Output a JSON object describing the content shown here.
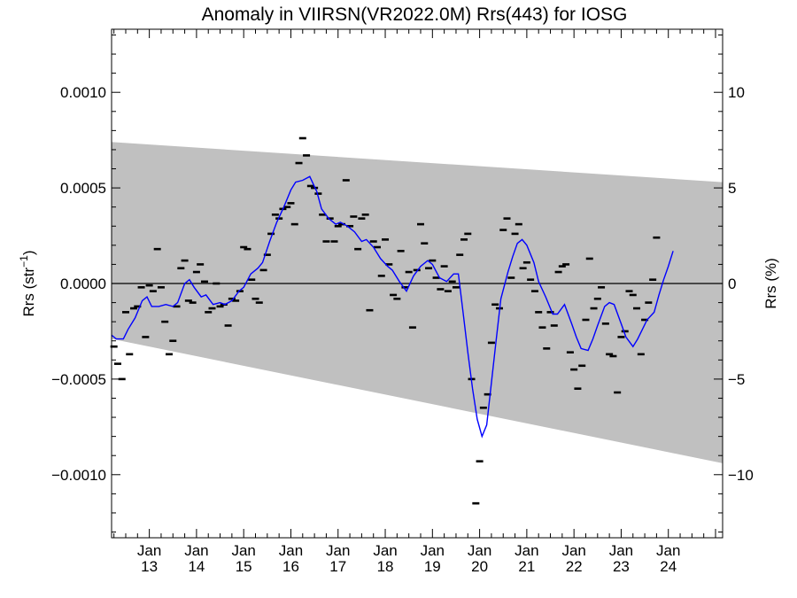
{
  "chart_data": {
    "type": "scatter",
    "title": "Anomaly in VIIRSN(VR2022.0M) Rrs(443) for IOSG",
    "ylabel_left_base": "Rrs (str",
    "ylabel_left_sup": "−1",
    "ylabel_left_close": ")",
    "ylabel_right": "Rrs (%)",
    "x_range": [
      2012.2,
      2025.15
    ],
    "ylim_left": [
      -0.00133,
      0.00133
    ],
    "ylim_right": [
      -13.3,
      13.3
    ],
    "left_ticks": [
      {
        "value": 0.001,
        "label": "0.0010"
      },
      {
        "value": 0.0005,
        "label": "0.0005"
      },
      {
        "value": 0.0,
        "label": "0.0000"
      },
      {
        "value": -0.0005,
        "label": "−0.0005"
      },
      {
        "value": -0.001,
        "label": "−0.0010"
      }
    ],
    "right_ticks": [
      {
        "value": 10,
        "label": "10"
      },
      {
        "value": 5,
        "label": "5"
      },
      {
        "value": 0,
        "label": "0"
      },
      {
        "value": -5,
        "label": "−5"
      },
      {
        "value": -10,
        "label": "−10"
      }
    ],
    "x_ticks": [
      {
        "value": 2013.0,
        "line1": "Jan",
        "line2": "13"
      },
      {
        "value": 2014.0,
        "line1": "Jan",
        "line2": "14"
      },
      {
        "value": 2015.0,
        "line1": "Jan",
        "line2": "15"
      },
      {
        "value": 2016.0,
        "line1": "Jan",
        "line2": "16"
      },
      {
        "value": 2017.0,
        "line1": "Jan",
        "line2": "17"
      },
      {
        "value": 2018.0,
        "line1": "Jan",
        "line2": "18"
      },
      {
        "value": 2019.0,
        "line1": "Jan",
        "line2": "19"
      },
      {
        "value": 2020.0,
        "line1": "Jan",
        "line2": "20"
      },
      {
        "value": 2021.0,
        "line1": "Jan",
        "line2": "21"
      },
      {
        "value": 2022.0,
        "line1": "Jan",
        "line2": "22"
      },
      {
        "value": 2023.0,
        "line1": "Jan",
        "line2": "23"
      },
      {
        "value": 2024.0,
        "line1": "Jan",
        "line2": "24"
      }
    ],
    "band": {
      "start": {
        "x": 2012.2,
        "upper": 0.00074,
        "lower": -0.00029
      },
      "end": {
        "x": 2025.15,
        "upper": 0.00053,
        "lower": -0.00094
      }
    },
    "points": [
      [
        2012.25,
        -0.00033
      ],
      [
        2012.33,
        -0.00042
      ],
      [
        2012.42,
        -0.0005
      ],
      [
        2012.5,
        -0.00015
      ],
      [
        2012.58,
        -0.00037
      ],
      [
        2012.67,
        -0.00013
      ],
      [
        2012.75,
        -0.00012
      ],
      [
        2012.83,
        -2e-05
      ],
      [
        2012.92,
        -0.00028
      ],
      [
        2013.0,
        -1e-05
      ],
      [
        2013.08,
        -4e-05
      ],
      [
        2013.17,
        0.00018
      ],
      [
        2013.25,
        -2e-05
      ],
      [
        2013.33,
        -0.0002
      ],
      [
        2013.42,
        -0.00037
      ],
      [
        2013.5,
        -0.0003
      ],
      [
        2013.58,
        -0.00012
      ],
      [
        2013.67,
        8e-05
      ],
      [
        2013.75,
        0.00012
      ],
      [
        2013.83,
        -9e-05
      ],
      [
        2013.92,
        -0.0001
      ],
      [
        2014.0,
        6e-05
      ],
      [
        2014.08,
        0.0001
      ],
      [
        2014.17,
        1e-05
      ],
      [
        2014.25,
        -0.00015
      ],
      [
        2014.33,
        -0.00013
      ],
      [
        2014.42,
        0.0
      ],
      [
        2014.5,
        -0.00012
      ],
      [
        2014.58,
        -0.00011
      ],
      [
        2014.67,
        -0.00022
      ],
      [
        2014.75,
        -8e-05
      ],
      [
        2014.83,
        -9e-05
      ],
      [
        2014.92,
        -4e-05
      ],
      [
        2015.0,
        0.00019
      ],
      [
        2015.08,
        0.00018
      ],
      [
        2015.17,
        2e-05
      ],
      [
        2015.25,
        -8e-05
      ],
      [
        2015.33,
        -0.0001
      ],
      [
        2015.42,
        7e-05
      ],
      [
        2015.5,
        0.00015
      ],
      [
        2015.58,
        0.00026
      ],
      [
        2015.67,
        0.00036
      ],
      [
        2015.75,
        0.00034
      ],
      [
        2015.83,
        0.00039
      ],
      [
        2015.92,
        0.0004
      ],
      [
        2016.0,
        0.00042
      ],
      [
        2016.08,
        0.00031
      ],
      [
        2016.17,
        0.00063
      ],
      [
        2016.25,
        0.00076
      ],
      [
        2016.33,
        0.00067
      ],
      [
        2016.42,
        0.00051
      ],
      [
        2016.5,
        0.0005
      ],
      [
        2016.58,
        0.00047
      ],
      [
        2016.67,
        0.00036
      ],
      [
        2016.75,
        0.00022
      ],
      [
        2016.83,
        0.00034
      ],
      [
        2016.92,
        0.00022
      ],
      [
        2017.0,
        0.0003
      ],
      [
        2017.08,
        0.00031
      ],
      [
        2017.17,
        0.00054
      ],
      [
        2017.25,
        0.0003
      ],
      [
        2017.33,
        0.00035
      ],
      [
        2017.42,
        0.00018
      ],
      [
        2017.5,
        0.00034
      ],
      [
        2017.58,
        0.00036
      ],
      [
        2017.67,
        -0.00014
      ],
      [
        2017.75,
        0.00022
      ],
      [
        2017.83,
        0.00019
      ],
      [
        2017.92,
        4e-05
      ],
      [
        2018.0,
        0.00023
      ],
      [
        2018.08,
        0.0001
      ],
      [
        2018.17,
        -6e-05
      ],
      [
        2018.25,
        -8e-05
      ],
      [
        2018.33,
        0.00017
      ],
      [
        2018.42,
        -2e-05
      ],
      [
        2018.5,
        6e-05
      ],
      [
        2018.58,
        -0.00023
      ],
      [
        2018.67,
        7e-05
      ],
      [
        2018.75,
        0.00031
      ],
      [
        2018.83,
        0.00021
      ],
      [
        2018.92,
        8e-05
      ],
      [
        2019.0,
        0.00012
      ],
      [
        2019.08,
        3e-05
      ],
      [
        2019.17,
        -3e-05
      ],
      [
        2019.25,
        9e-05
      ],
      [
        2019.33,
        -4e-05
      ],
      [
        2019.42,
        1e-05
      ],
      [
        2019.5,
        -2e-05
      ],
      [
        2019.58,
        0.00015
      ],
      [
        2019.67,
        0.00023
      ],
      [
        2019.75,
        0.00026
      ],
      [
        2019.83,
        -0.0005
      ],
      [
        2019.92,
        -0.00115
      ],
      [
        2020.0,
        -0.00093
      ],
      [
        2020.08,
        -0.00065
      ],
      [
        2020.17,
        -0.00058
      ],
      [
        2020.25,
        -0.00031
      ],
      [
        2020.33,
        -0.00011
      ],
      [
        2020.42,
        -0.00013
      ],
      [
        2020.5,
        0.00028
      ],
      [
        2020.58,
        0.00034
      ],
      [
        2020.67,
        3e-05
      ],
      [
        2020.75,
        0.00026
      ],
      [
        2020.83,
        0.00031
      ],
      [
        2020.92,
        8e-05
      ],
      [
        2021.0,
        0.00011
      ],
      [
        2021.08,
        2e-05
      ],
      [
        2021.17,
        -4e-05
      ],
      [
        2021.25,
        -0.00015
      ],
      [
        2021.33,
        -0.00023
      ],
      [
        2021.42,
        -0.00034
      ],
      [
        2021.5,
        -0.00015
      ],
      [
        2021.58,
        -0.00022
      ],
      [
        2021.67,
        6e-05
      ],
      [
        2021.75,
        9e-05
      ],
      [
        2021.83,
        0.0001
      ],
      [
        2021.92,
        -0.00036
      ],
      [
        2022.0,
        -0.00045
      ],
      [
        2022.08,
        -0.00055
      ],
      [
        2022.17,
        -0.00043
      ],
      [
        2022.25,
        -0.00019
      ],
      [
        2022.33,
        0.00013
      ],
      [
        2022.42,
        -0.00013
      ],
      [
        2022.5,
        -8e-05
      ],
      [
        2022.58,
        -2e-05
      ],
      [
        2022.67,
        -0.00021
      ],
      [
        2022.75,
        -0.00037
      ],
      [
        2022.83,
        -0.00038
      ],
      [
        2022.92,
        -0.00057
      ],
      [
        2023.0,
        -0.00028
      ],
      [
        2023.08,
        -0.00025
      ],
      [
        2023.17,
        -4e-05
      ],
      [
        2023.25,
        -6e-05
      ],
      [
        2023.33,
        -0.00013
      ],
      [
        2023.42,
        -0.00037
      ],
      [
        2023.5,
        -0.00019
      ],
      [
        2023.58,
        -0.0001
      ],
      [
        2023.67,
        2e-05
      ],
      [
        2023.75,
        0.00024
      ]
    ],
    "smooth": [
      [
        2012.2,
        -0.00027
      ],
      [
        2012.3,
        -0.00029
      ],
      [
        2012.45,
        -0.00029
      ],
      [
        2012.55,
        -0.00024
      ],
      [
        2012.7,
        -0.00018
      ],
      [
        2012.85,
        -9e-05
      ],
      [
        2012.95,
        -7e-05
      ],
      [
        2013.05,
        -0.00012
      ],
      [
        2013.2,
        -0.00012
      ],
      [
        2013.35,
        -0.00011
      ],
      [
        2013.5,
        -0.00012
      ],
      [
        2013.6,
        -0.0001
      ],
      [
        2013.75,
        0.0
      ],
      [
        2013.85,
        2e-05
      ],
      [
        2013.95,
        -2e-05
      ],
      [
        2014.1,
        -7e-05
      ],
      [
        2014.2,
        -6e-05
      ],
      [
        2014.35,
        -0.00011
      ],
      [
        2014.5,
        -0.0001
      ],
      [
        2014.6,
        -0.00011
      ],
      [
        2014.75,
        -9e-05
      ],
      [
        2014.9,
        -4e-05
      ],
      [
        2015.0,
        -2e-05
      ],
      [
        2015.15,
        5e-05
      ],
      [
        2015.3,
        8e-05
      ],
      [
        2015.4,
        0.00011
      ],
      [
        2015.55,
        0.00022
      ],
      [
        2015.7,
        0.00032
      ],
      [
        2015.85,
        0.0004
      ],
      [
        2016.0,
        0.00049
      ],
      [
        2016.1,
        0.00053
      ],
      [
        2016.25,
        0.00054
      ],
      [
        2016.4,
        0.00056
      ],
      [
        2016.55,
        0.00048
      ],
      [
        2016.65,
        0.00039
      ],
      [
        2016.8,
        0.00034
      ],
      [
        2016.95,
        0.00031
      ],
      [
        2017.05,
        0.00032
      ],
      [
        2017.2,
        0.0003
      ],
      [
        2017.35,
        0.00027
      ],
      [
        2017.5,
        0.00022
      ],
      [
        2017.6,
        0.00023
      ],
      [
        2017.75,
        0.00019
      ],
      [
        2017.9,
        0.00013
      ],
      [
        2018.05,
        9e-05
      ],
      [
        2018.15,
        7e-05
      ],
      [
        2018.3,
        1e-05
      ],
      [
        2018.45,
        -4e-05
      ],
      [
        2018.6,
        4e-05
      ],
      [
        2018.75,
        9e-05
      ],
      [
        2018.9,
        0.00012
      ],
      [
        2019.0,
        0.0001
      ],
      [
        2019.15,
        3e-05
      ],
      [
        2019.3,
        1e-05
      ],
      [
        2019.45,
        5e-05
      ],
      [
        2019.55,
        5e-05
      ],
      [
        2019.65,
        -0.00015
      ],
      [
        2019.75,
        -0.00036
      ],
      [
        2019.85,
        -0.00055
      ],
      [
        2019.95,
        -0.00071
      ],
      [
        2020.05,
        -0.0008
      ],
      [
        2020.15,
        -0.00074
      ],
      [
        2020.25,
        -0.00052
      ],
      [
        2020.35,
        -0.0003
      ],
      [
        2020.45,
        -8e-05
      ],
      [
        2020.6,
        6e-05
      ],
      [
        2020.7,
        0.00014
      ],
      [
        2020.8,
        0.00021
      ],
      [
        2020.9,
        0.00023
      ],
      [
        2021.0,
        0.0002
      ],
      [
        2021.15,
        0.00011
      ],
      [
        2021.25,
        1e-05
      ],
      [
        2021.4,
        -7e-05
      ],
      [
        2021.55,
        -0.00016
      ],
      [
        2021.65,
        -0.00016
      ],
      [
        2021.8,
        -0.00011
      ],
      [
        2021.95,
        -0.00021
      ],
      [
        2022.05,
        -0.00028
      ],
      [
        2022.15,
        -0.00034
      ],
      [
        2022.3,
        -0.00035
      ],
      [
        2022.4,
        -0.00029
      ],
      [
        2022.5,
        -0.00022
      ],
      [
        2022.65,
        -0.00012
      ],
      [
        2022.75,
        -0.0001
      ],
      [
        2022.85,
        -0.00011
      ],
      [
        2023.0,
        -0.00021
      ],
      [
        2023.1,
        -0.00028
      ],
      [
        2023.25,
        -0.00033
      ],
      [
        2023.35,
        -0.00029
      ],
      [
        2023.45,
        -0.00024
      ],
      [
        2023.55,
        -0.00019
      ],
      [
        2023.7,
        -0.00015
      ],
      [
        2023.8,
        -6e-05
      ],
      [
        2023.9,
        2e-05
      ],
      [
        2024.0,
        9e-05
      ],
      [
        2024.1,
        0.00017
      ]
    ],
    "colors": {
      "band": "#c0c0c0",
      "smooth_line": "#0000ff",
      "points": "#000000",
      "zero_line": "#000000"
    }
  }
}
